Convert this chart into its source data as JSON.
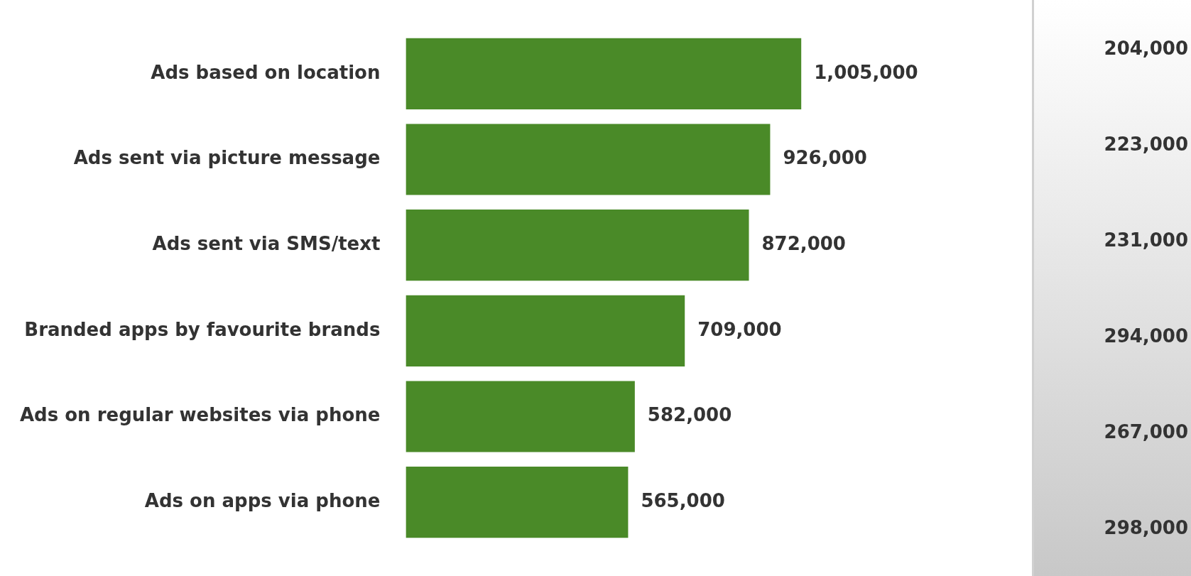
{
  "chart_data": [
    {
      "type": "bar",
      "orientation": "horizontal",
      "categories": [
        "Ads based on location",
        "Ads sent via picture message",
        "Ads sent via SMS/text",
        "Branded apps by favourite brands",
        "Ads on regular websites via phone",
        "Ads on apps via phone"
      ],
      "values": [
        1005000,
        926000,
        872000,
        709000,
        582000,
        565000
      ],
      "value_labels": [
        "1,005,000",
        "926,000",
        "872,000",
        "709,000",
        "582,000",
        "565,000"
      ],
      "color": "#4a8a28"
    },
    {
      "type": "other",
      "annotations": [
        "204,000",
        "223,000",
        "231,000",
        "294,000",
        "267,000",
        "298,000"
      ]
    }
  ]
}
